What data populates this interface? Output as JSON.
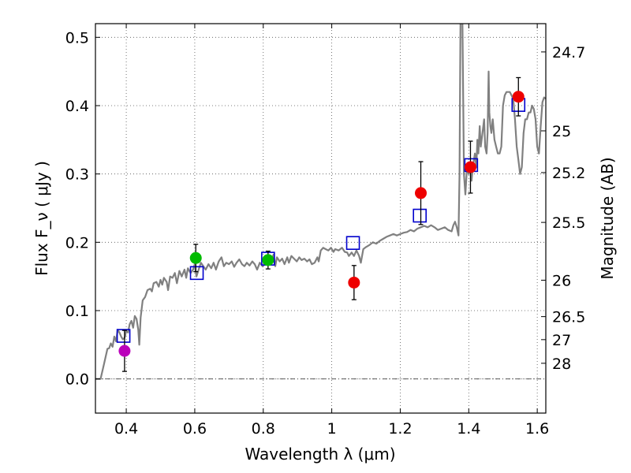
{
  "chart_data": {
    "type": "scatter",
    "title": "",
    "xlabel": "Wavelength  λ (μm)",
    "ylabel": "Flux  F_ν  ( μJy )",
    "ylabel_right": "Magnitude (AB)",
    "xlim": [
      0.31,
      1.625
    ],
    "ylim": [
      -0.05,
      0.52
    ],
    "grid": true,
    "legend": "none",
    "x_ticks": [
      {
        "value": 0.4,
        "label": "0.4"
      },
      {
        "value": 0.6,
        "label": "0.6"
      },
      {
        "value": 0.8,
        "label": "0.8"
      },
      {
        "value": 1.0,
        "label": "1"
      },
      {
        "value": 1.2,
        "label": "1.2"
      },
      {
        "value": 1.4,
        "label": "1.4"
      },
      {
        "value": 1.6,
        "label": "1.6"
      }
    ],
    "y_ticks": [
      {
        "value": 0.0,
        "label": "0.0"
      },
      {
        "value": 0.1,
        "label": "0.1"
      },
      {
        "value": 0.2,
        "label": "0.2"
      },
      {
        "value": 0.3,
        "label": "0.3"
      },
      {
        "value": 0.4,
        "label": "0.4"
      },
      {
        "value": 0.5,
        "label": "0.5"
      }
    ],
    "right_ticks": [
      {
        "flux": 0.4786,
        "label": "24.7"
      },
      {
        "flux": 0.3631,
        "label": "25"
      },
      {
        "flux": 0.302,
        "label": "25.2"
      },
      {
        "flux": 0.2291,
        "label": "25.5"
      },
      {
        "flux": 0.1445,
        "label": "26"
      },
      {
        "flux": 0.0912,
        "label": "26.5"
      },
      {
        "flux": 0.0575,
        "label": "27"
      },
      {
        "flux": 0.0229,
        "label": "28"
      }
    ],
    "zero_line": 0.0,
    "colors": {
      "sed": "#808080",
      "model_box": "#0000cc",
      "violet": "#bb00bb",
      "green": "#00bb00",
      "red": "#ee0000",
      "errorbar": "#000000",
      "grid": "#555555"
    },
    "sed_curve": [
      [
        0.31,
        0.0
      ],
      [
        0.325,
        0.0
      ],
      [
        0.335,
        0.022
      ],
      [
        0.345,
        0.044
      ],
      [
        0.35,
        0.045
      ],
      [
        0.355,
        0.052
      ],
      [
        0.36,
        0.047
      ],
      [
        0.365,
        0.062
      ],
      [
        0.37,
        0.055
      ],
      [
        0.375,
        0.072
      ],
      [
        0.38,
        0.068
      ],
      [
        0.385,
        0.062
      ],
      [
        0.39,
        0.058
      ],
      [
        0.395,
        0.06
      ],
      [
        0.4,
        0.07
      ],
      [
        0.405,
        0.068
      ],
      [
        0.41,
        0.08
      ],
      [
        0.415,
        0.085
      ],
      [
        0.42,
        0.075
      ],
      [
        0.425,
        0.092
      ],
      [
        0.43,
        0.088
      ],
      [
        0.435,
        0.072
      ],
      [
        0.438,
        0.05
      ],
      [
        0.442,
        0.09
      ],
      [
        0.448,
        0.115
      ],
      [
        0.455,
        0.12
      ],
      [
        0.462,
        0.13
      ],
      [
        0.47,
        0.132
      ],
      [
        0.475,
        0.128
      ],
      [
        0.48,
        0.14
      ],
      [
        0.488,
        0.142
      ],
      [
        0.495,
        0.135
      ],
      [
        0.5,
        0.145
      ],
      [
        0.505,
        0.138
      ],
      [
        0.51,
        0.148
      ],
      [
        0.518,
        0.142
      ],
      [
        0.522,
        0.13
      ],
      [
        0.528,
        0.15
      ],
      [
        0.535,
        0.148
      ],
      [
        0.542,
        0.155
      ],
      [
        0.548,
        0.14
      ],
      [
        0.555,
        0.158
      ],
      [
        0.562,
        0.15
      ],
      [
        0.57,
        0.16
      ],
      [
        0.575,
        0.148
      ],
      [
        0.58,
        0.162
      ],
      [
        0.588,
        0.155
      ],
      [
        0.595,
        0.16
      ],
      [
        0.6,
        0.168
      ],
      [
        0.605,
        0.15
      ],
      [
        0.61,
        0.158
      ],
      [
        0.618,
        0.17
      ],
      [
        0.625,
        0.165
      ],
      [
        0.632,
        0.16
      ],
      [
        0.64,
        0.168
      ],
      [
        0.648,
        0.162
      ],
      [
        0.655,
        0.17
      ],
      [
        0.662,
        0.16
      ],
      [
        0.67,
        0.172
      ],
      [
        0.678,
        0.178
      ],
      [
        0.685,
        0.165
      ],
      [
        0.692,
        0.17
      ],
      [
        0.7,
        0.168
      ],
      [
        0.708,
        0.172
      ],
      [
        0.715,
        0.164
      ],
      [
        0.722,
        0.17
      ],
      [
        0.73,
        0.175
      ],
      [
        0.738,
        0.168
      ],
      [
        0.745,
        0.165
      ],
      [
        0.752,
        0.17
      ],
      [
        0.76,
        0.166
      ],
      [
        0.768,
        0.172
      ],
      [
        0.775,
        0.168
      ],
      [
        0.782,
        0.16
      ],
      [
        0.79,
        0.17
      ],
      [
        0.798,
        0.165
      ],
      [
        0.805,
        0.168
      ],
      [
        0.812,
        0.172
      ],
      [
        0.818,
        0.17
      ],
      [
        0.825,
        0.175
      ],
      [
        0.83,
        0.182
      ],
      [
        0.835,
        0.165
      ],
      [
        0.84,
        0.178
      ],
      [
        0.848,
        0.172
      ],
      [
        0.855,
        0.176
      ],
      [
        0.862,
        0.168
      ],
      [
        0.87,
        0.178
      ],
      [
        0.875,
        0.17
      ],
      [
        0.882,
        0.18
      ],
      [
        0.89,
        0.176
      ],
      [
        0.898,
        0.172
      ],
      [
        0.905,
        0.178
      ],
      [
        0.912,
        0.174
      ],
      [
        0.92,
        0.176
      ],
      [
        0.928,
        0.172
      ],
      [
        0.935,
        0.175
      ],
      [
        0.942,
        0.168
      ],
      [
        0.95,
        0.17
      ],
      [
        0.958,
        0.178
      ],
      [
        0.962,
        0.172
      ],
      [
        0.968,
        0.188
      ],
      [
        0.975,
        0.192
      ],
      [
        0.982,
        0.19
      ],
      [
        0.99,
        0.188
      ],
      [
        0.998,
        0.192
      ],
      [
        1.005,
        0.186
      ],
      [
        1.01,
        0.19
      ],
      [
        1.02,
        0.188
      ],
      [
        1.03,
        0.192
      ],
      [
        1.038,
        0.186
      ],
      [
        1.045,
        0.185
      ],
      [
        1.05,
        0.18
      ],
      [
        1.058,
        0.185
      ],
      [
        1.065,
        0.18
      ],
      [
        1.072,
        0.188
      ],
      [
        1.08,
        0.18
      ],
      [
        1.085,
        0.17
      ],
      [
        1.092,
        0.19
      ],
      [
        1.1,
        0.193
      ],
      [
        1.11,
        0.196
      ],
      [
        1.12,
        0.2
      ],
      [
        1.13,
        0.198
      ],
      [
        1.14,
        0.202
      ],
      [
        1.15,
        0.205
      ],
      [
        1.16,
        0.208
      ],
      [
        1.17,
        0.21
      ],
      [
        1.18,
        0.212
      ],
      [
        1.19,
        0.21
      ],
      [
        1.2,
        0.212
      ],
      [
        1.21,
        0.214
      ],
      [
        1.22,
        0.215
      ],
      [
        1.23,
        0.218
      ],
      [
        1.24,
        0.216
      ],
      [
        1.25,
        0.22
      ],
      [
        1.26,
        0.222
      ],
      [
        1.27,
        0.224
      ],
      [
        1.28,
        0.222
      ],
      [
        1.29,
        0.225
      ],
      [
        1.3,
        0.222
      ],
      [
        1.31,
        0.218
      ],
      [
        1.32,
        0.22
      ],
      [
        1.33,
        0.222
      ],
      [
        1.34,
        0.218
      ],
      [
        1.35,
        0.216
      ],
      [
        1.355,
        0.225
      ],
      [
        1.36,
        0.23
      ],
      [
        1.365,
        0.222
      ],
      [
        1.37,
        0.21
      ],
      [
        1.373,
        0.3
      ],
      [
        1.375,
        0.45
      ],
      [
        1.377,
        0.6
      ],
      [
        1.38,
        0.6
      ],
      [
        1.383,
        0.45
      ],
      [
        1.386,
        0.3
      ],
      [
        1.39,
        0.27
      ],
      [
        1.395,
        0.31
      ],
      [
        1.4,
        0.3
      ],
      [
        1.405,
        0.31
      ],
      [
        1.408,
        0.29
      ],
      [
        1.412,
        0.31
      ],
      [
        1.418,
        0.33
      ],
      [
        1.422,
        0.31
      ],
      [
        1.425,
        0.35
      ],
      [
        1.428,
        0.33
      ],
      [
        1.432,
        0.37
      ],
      [
        1.435,
        0.34
      ],
      [
        1.44,
        0.36
      ],
      [
        1.445,
        0.38
      ],
      [
        1.448,
        0.34
      ],
      [
        1.452,
        0.33
      ],
      [
        1.455,
        0.36
      ],
      [
        1.458,
        0.45
      ],
      [
        1.46,
        0.39
      ],
      [
        1.463,
        0.37
      ],
      [
        1.466,
        0.36
      ],
      [
        1.47,
        0.38
      ],
      [
        1.475,
        0.35
      ],
      [
        1.48,
        0.34
      ],
      [
        1.485,
        0.33
      ],
      [
        1.49,
        0.33
      ],
      [
        1.495,
        0.34
      ],
      [
        1.5,
        0.4
      ],
      [
        1.505,
        0.415
      ],
      [
        1.51,
        0.42
      ],
      [
        1.52,
        0.42
      ],
      [
        1.53,
        0.41
      ],
      [
        1.535,
        0.38
      ],
      [
        1.54,
        0.34
      ],
      [
        1.545,
        0.32
      ],
      [
        1.55,
        0.3
      ],
      [
        1.555,
        0.31
      ],
      [
        1.56,
        0.36
      ],
      [
        1.565,
        0.38
      ],
      [
        1.57,
        0.38
      ],
      [
        1.575,
        0.39
      ],
      [
        1.58,
        0.39
      ],
      [
        1.585,
        0.4
      ],
      [
        1.59,
        0.395
      ],
      [
        1.595,
        0.38
      ],
      [
        1.6,
        0.34
      ],
      [
        1.605,
        0.33
      ],
      [
        1.61,
        0.37
      ],
      [
        1.615,
        0.405
      ],
      [
        1.62,
        0.412
      ],
      [
        1.625,
        0.41
      ]
    ],
    "model_points": [
      {
        "x": 0.392,
        "y": 0.063
      },
      {
        "x": 0.606,
        "y": 0.155
      },
      {
        "x": 0.814,
        "y": 0.176
      },
      {
        "x": 1.062,
        "y": 0.199
      },
      {
        "x": 1.257,
        "y": 0.239
      },
      {
        "x": 1.407,
        "y": 0.313
      },
      {
        "x": 1.545,
        "y": 0.401
      }
    ],
    "observed_points": [
      {
        "x": 0.395,
        "y": 0.041,
        "err": 0.03,
        "color": "violet"
      },
      {
        "x": 0.603,
        "y": 0.177,
        "err": 0.02,
        "color": "green"
      },
      {
        "x": 0.814,
        "y": 0.174,
        "err": 0.013,
        "color": "green"
      },
      {
        "x": 1.065,
        "y": 0.141,
        "err": 0.025,
        "color": "red"
      },
      {
        "x": 1.26,
        "y": 0.272,
        "err": 0.046,
        "color": "red"
      },
      {
        "x": 1.405,
        "y": 0.31,
        "err": 0.038,
        "color": "red"
      },
      {
        "x": 1.545,
        "y": 0.413,
        "err": 0.028,
        "color": "red"
      }
    ]
  }
}
